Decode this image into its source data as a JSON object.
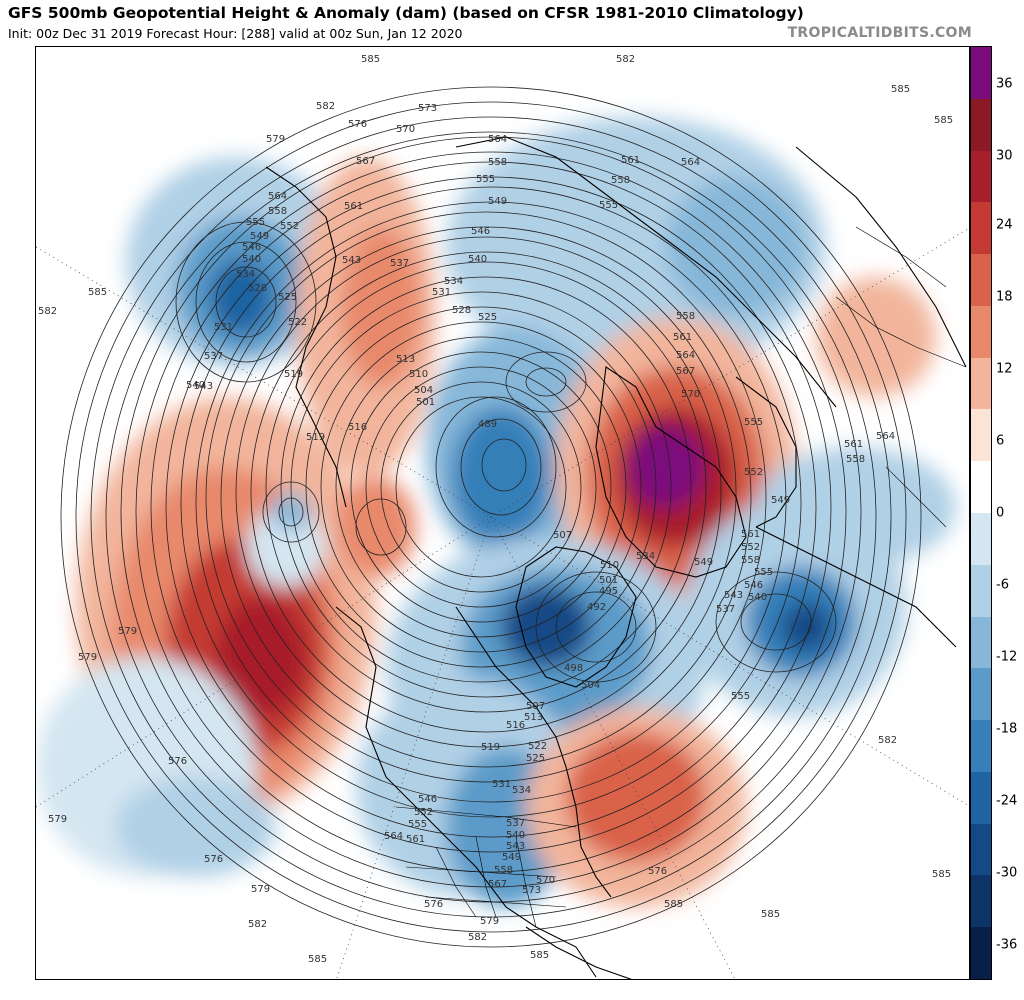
{
  "header": {
    "title": "GFS 500mb Geopotential Height & Anomaly (dam) (based on CFSR 1981-2010 Climatology)",
    "subtitle": "Init: 00z Dec 31 2019   Forecast Hour: [288]   valid at 00z Sun, Jan 12 2020",
    "brand": "TROPICALTIDBITS.COM"
  },
  "colorbar": {
    "labels": [
      "36",
      "30",
      "24",
      "18",
      "12",
      "6",
      "0",
      "-6",
      "-12",
      "-18",
      "-24",
      "-30",
      "-36"
    ],
    "colors": [
      "#7b0c7c",
      "#8c1a26",
      "#a81e2c",
      "#c43a33",
      "#d9624a",
      "#e8896c",
      "#f2b59c",
      "#fbe3d5",
      "#ffffff",
      "#d4e6f1",
      "#b0d0e6",
      "#86b7d9",
      "#5b9bc9",
      "#367fb9",
      "#1e63a2",
      "#134a86",
      "#0c3466",
      "#081f47"
    ]
  },
  "map": {
    "anomaly_positive_color": "#d9624a",
    "anomaly_negative_color": "#367fb9",
    "coast_color": "#000000",
    "contour_color": "#222222",
    "contour_labels": [
      "585",
      "582",
      "573",
      "576",
      "570",
      "579",
      "567",
      "564",
      "558",
      "561",
      "555",
      "549",
      "552",
      "546",
      "540",
      "543",
      "534",
      "528",
      "537",
      "531",
      "525",
      "522",
      "513",
      "519",
      "510",
      "504",
      "501",
      "516",
      "489",
      "507",
      "495",
      "492",
      "498"
    ]
  }
}
